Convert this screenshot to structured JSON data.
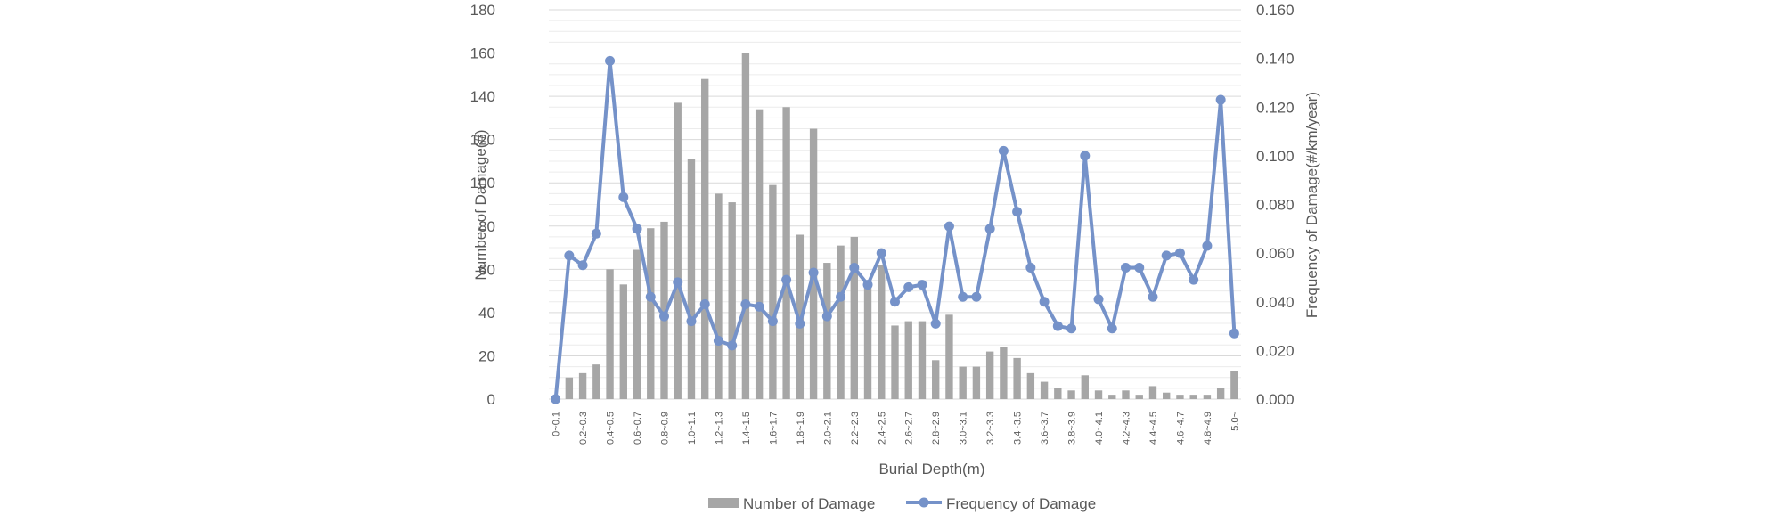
{
  "chart_data": {
    "type": "bar",
    "title": "",
    "xlabel": "Burial Depth(m)",
    "ylabel_left": "Number of Damage(#)",
    "ylabel_right": "Frequency of Damage(#/km/year)",
    "ylim_left": [
      0,
      180
    ],
    "ylim_right": [
      0,
      0.16
    ],
    "yticks_left": [
      "0",
      "20",
      "40",
      "60",
      "80",
      "100",
      "120",
      "140",
      "160",
      "180"
    ],
    "yticks_right": [
      "0.000",
      "0.020",
      "0.040",
      "0.060",
      "0.080",
      "0.100",
      "0.120",
      "0.140",
      "0.160"
    ],
    "grid": true,
    "legend_position": "bottom",
    "categories": [
      "0~0.1",
      "0.1~0.2",
      "0.2~0.3",
      "0.3~0.4",
      "0.4~0.5",
      "0.5~0.6",
      "0.6~0.7",
      "0.7~0.8",
      "0.8~0.9",
      "0.9~1.0",
      "1.0~1.1",
      "1.1~1.2",
      "1.2~1.3",
      "1.3~1.4",
      "1.4~1.5",
      "1.5~1.6",
      "1.6~1.7",
      "1.7~1.8",
      "1.8~1.9",
      "1.9~2.0",
      "2.0~2.1",
      "2.1~2.2",
      "2.2~2.3",
      "2.3~2.4",
      "2.4~2.5",
      "2.5~2.6",
      "2.6~2.7",
      "2.7~2.8",
      "2.8~2.9",
      "2.9~3.0",
      "3.0~3.1",
      "3.1~3.2",
      "3.2~3.3",
      "3.3~3.4",
      "3.4~3.5",
      "3.5~3.6",
      "3.6~3.7",
      "3.7~3.8",
      "3.8~3.9",
      "3.9~4.0",
      "4.0~4.1",
      "4.1~4.2",
      "4.2~4.3",
      "4.3~4.4",
      "4.4~4.5",
      "4.5~4.6",
      "4.6~4.7",
      "4.7~4.8",
      "4.8~4.9",
      "4.9~5.0",
      "5.0~"
    ],
    "x_tick_labels": [
      "0~0.1",
      "",
      "0.2~0.3",
      "",
      "0.4~0.5",
      "",
      "0.6~0.7",
      "",
      "0.8~0.9",
      "",
      "1.0~1.1",
      "",
      "1.2~1.3",
      "",
      "1.4~1.5",
      "",
      "1.6~1.7",
      "",
      "1.8~1.9",
      "",
      "2.0~2.1",
      "",
      "2.2~2.3",
      "",
      "2.4~2.5",
      "",
      "2.6~2.7",
      "",
      "2.8~2.9",
      "",
      "3.0~3.1",
      "",
      "3.2~3.3",
      "",
      "3.4~3.5",
      "",
      "3.6~3.7",
      "",
      "3.8~3.9",
      "",
      "4.0~4.1",
      "",
      "4.2~4.3",
      "",
      "4.4~4.5",
      "",
      "4.6~4.7",
      "",
      "4.8~4.9",
      "",
      "5.0~"
    ],
    "series": [
      {
        "name": "Number of Damage",
        "type": "bar",
        "axis": "left",
        "color": "#a6a6a6",
        "values": [
          0,
          10,
          12,
          16,
          60,
          53,
          69,
          79,
          82,
          137,
          111,
          148,
          95,
          91,
          160,
          134,
          99,
          135,
          76,
          125,
          63,
          71,
          75,
          54,
          62,
          34,
          36,
          36,
          18,
          39,
          15,
          15,
          22,
          24,
          19,
          12,
          8,
          5,
          4,
          11,
          4,
          2,
          4,
          2,
          6,
          3,
          2,
          2,
          2,
          5,
          13
        ]
      },
      {
        "name": "Frequency of Damage",
        "type": "line",
        "axis": "right",
        "color": "#7592c9",
        "values": [
          0.0,
          0.059,
          0.055,
          0.068,
          0.139,
          0.083,
          0.07,
          0.042,
          0.034,
          0.048,
          0.032,
          0.039,
          0.024,
          0.022,
          0.039,
          0.038,
          0.032,
          0.049,
          0.031,
          0.052,
          0.034,
          0.042,
          0.054,
          0.047,
          0.06,
          0.04,
          0.046,
          0.047,
          0.031,
          0.071,
          0.042,
          0.042,
          0.07,
          0.102,
          0.077,
          0.054,
          0.04,
          0.03,
          0.029,
          0.1,
          0.041,
          0.029,
          0.054,
          0.054,
          0.042,
          0.059,
          0.06,
          0.049,
          0.063,
          0.123,
          0.027
        ]
      }
    ]
  }
}
